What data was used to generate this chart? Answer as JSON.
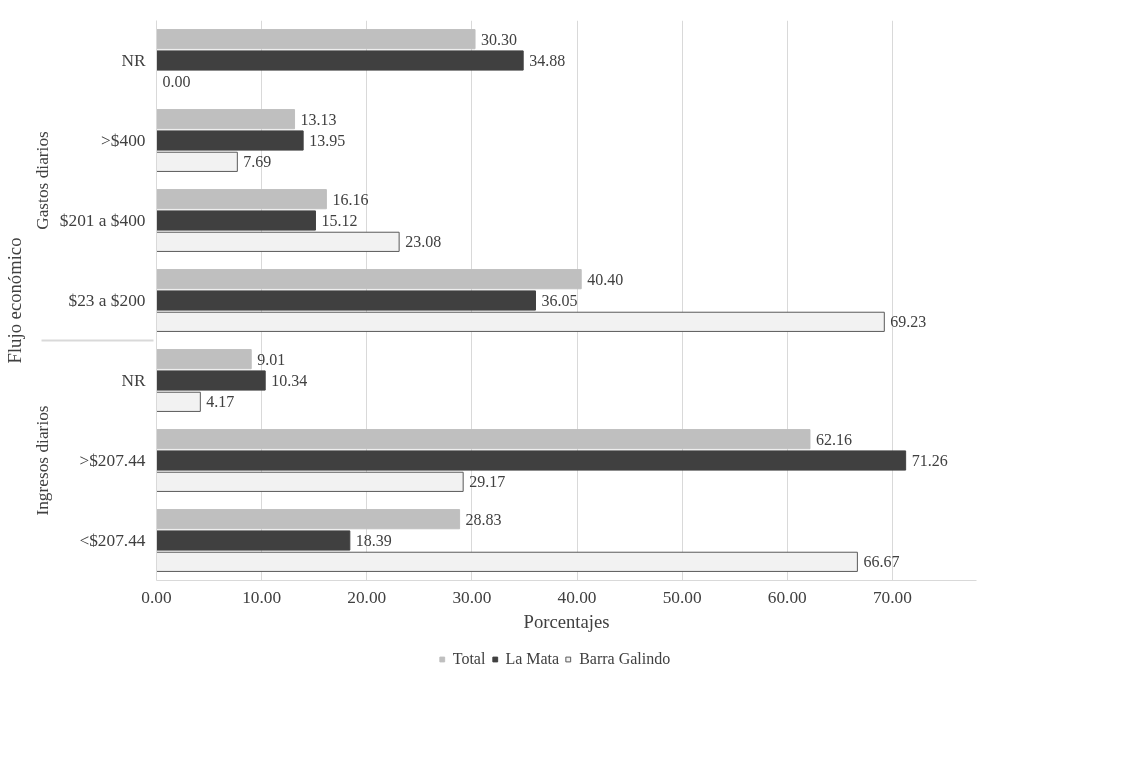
{
  "chart_data": {
    "type": "bar",
    "orientation": "horizontal",
    "xlabel": "Porcentajes",
    "ylabel": "Flujo económico",
    "categories": [
      "NR",
      ">$400",
      "$201 a $400",
      "$23 a $200",
      "NR",
      ">$207.44",
      "<$207.44"
    ],
    "series": [
      {
        "name": "Total",
        "color": "#bfbfbf",
        "values": [
          30.3,
          13.13,
          16.16,
          40.4,
          9.01,
          62.16,
          28.83
        ],
        "value_labels": [
          "30.30",
          "13.13",
          "16.16",
          "40.40",
          "9.01",
          "62.16",
          "28.83"
        ]
      },
      {
        "name": "La Mata",
        "color": "#404040",
        "values": [
          34.88,
          13.95,
          15.12,
          36.05,
          10.34,
          71.26,
          18.39
        ],
        "value_labels": [
          "34.88",
          "13.95",
          "15.12",
          "36.05",
          "10.34",
          "71.26",
          "18.39"
        ]
      },
      {
        "name": "Barra Galindo",
        "color": "#f2f2f2",
        "values": [
          0.0,
          7.69,
          23.08,
          69.23,
          4.17,
          29.17,
          66.67
        ],
        "value_labels": [
          "0.00",
          "7.69",
          "23.08",
          "69.23",
          "4.17",
          "29.17",
          "66.67"
        ]
      }
    ],
    "annotations": [
      "Gastos diarios",
      "Ingresos diarios"
    ],
    "xlim": [
      0,
      78
    ],
    "xticks": [
      {
        "value": 0,
        "label": "0.00"
      },
      {
        "value": 10,
        "label": "10.00"
      },
      {
        "value": 20,
        "label": "20.00"
      },
      {
        "value": 30,
        "label": "30.00"
      },
      {
        "value": 40,
        "label": "40.00"
      },
      {
        "value": 50,
        "label": "50.00"
      },
      {
        "value": 60,
        "label": "60.00"
      },
      {
        "value": 70,
        "label": "70.00"
      }
    ],
    "grid": "x",
    "legend": "bottom"
  }
}
